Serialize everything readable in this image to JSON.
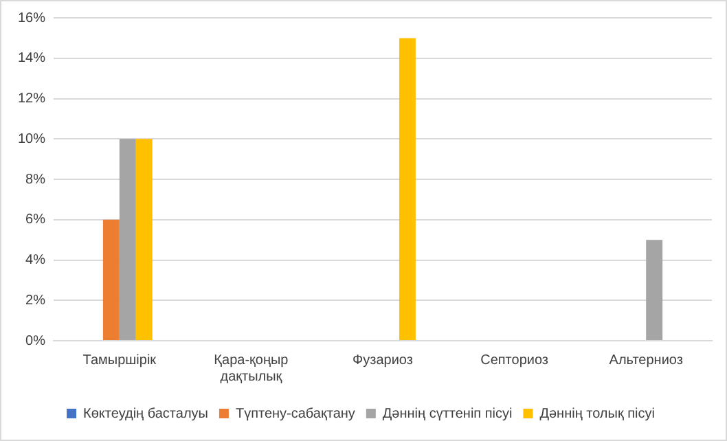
{
  "chart_data": {
    "type": "bar",
    "categories": [
      "Тамыршірік",
      "Қара-қоңыр дақтылық",
      "Фузариоз",
      "Септориоз",
      "Альтерниоз"
    ],
    "series": [
      {
        "name": "Көктеудің басталуы",
        "color": "#4472c4",
        "values": [
          0,
          0,
          0,
          0,
          0
        ]
      },
      {
        "name": "Түптену-сабақтану",
        "color": "#ed7d31",
        "values": [
          6,
          0,
          0,
          0,
          0
        ]
      },
      {
        "name": "Дәннің сүттеніп пісуі",
        "color": "#a5a5a5",
        "values": [
          10,
          0,
          0,
          0,
          5
        ]
      },
      {
        "name": "Дәннің толық пісуі",
        "color": "#ffc000",
        "values": [
          10,
          0,
          15,
          0,
          0
        ]
      }
    ],
    "ylim": [
      0,
      16
    ],
    "yticks": [
      {
        "value": 0,
        "label": "0%"
      },
      {
        "value": 2,
        "label": "2%"
      },
      {
        "value": 4,
        "label": "4%"
      },
      {
        "value": 6,
        "label": "6%"
      },
      {
        "value": 8,
        "label": "8%"
      },
      {
        "value": 10,
        "label": "10%"
      },
      {
        "value": 12,
        "label": "12%"
      },
      {
        "value": 14,
        "label": "14%"
      },
      {
        "value": 16,
        "label": "16%"
      }
    ],
    "grid": "y",
    "legend": "bottom"
  }
}
